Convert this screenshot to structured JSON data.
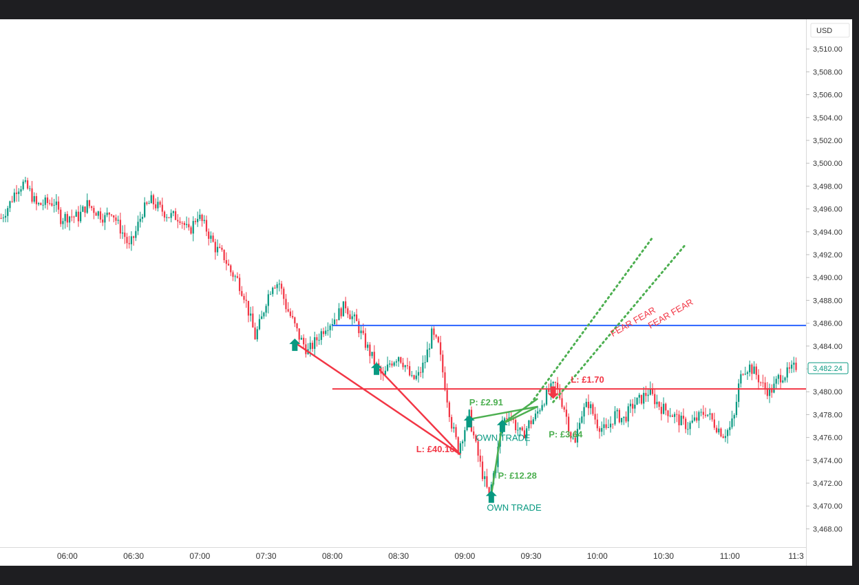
{
  "chart_data": {
    "type": "candlestick",
    "currency_label": "USD",
    "last_price_label": "3,482.24",
    "y_ticks": [
      3510,
      3508,
      3506,
      3504,
      3502,
      3500,
      3498,
      3496,
      3494,
      3492,
      3490,
      3488,
      3486,
      3484,
      3482,
      3480,
      3478,
      3476,
      3474,
      3472,
      3470,
      3468
    ],
    "y_tick_labels": [
      "3,510.00",
      "3,508.00",
      "3,506.00",
      "3,504.00",
      "3,502.00",
      "3,500.00",
      "3,498.00",
      "3,496.00",
      "3,494.00",
      "3,492.00",
      "3,490.00",
      "3,488.00",
      "3,486.00",
      "3,484.00",
      "3,482.00",
      "3,480.00",
      "3,478.00",
      "3,476.00",
      "3,474.00",
      "3,472.00",
      "3,470.00",
      "3,468.00"
    ],
    "ylim": [
      3466.4,
      3512.6
    ],
    "x_range_minutes": [
      329.5,
      694.5
    ],
    "x_ticks": [
      {
        "minute": 360,
        "label": "06:00"
      },
      {
        "minute": 390,
        "label": "06:30"
      },
      {
        "minute": 420,
        "label": "07:00"
      },
      {
        "minute": 450,
        "label": "07:30"
      },
      {
        "minute": 480,
        "label": "08:00"
      },
      {
        "minute": 510,
        "label": "08:30"
      },
      {
        "minute": 540,
        "label": "09:00"
      },
      {
        "minute": 570,
        "label": "09:30"
      },
      {
        "minute": 600,
        "label": "10:00"
      },
      {
        "minute": 630,
        "label": "10:30"
      },
      {
        "minute": 660,
        "label": "11:00"
      },
      {
        "minute": 690,
        "label": "11:3"
      }
    ],
    "path": [
      [
        330,
        3495.2
      ],
      [
        334,
        3496.5
      ],
      [
        337,
        3497.8
      ],
      [
        340,
        3498.2
      ],
      [
        343,
        3497.5
      ],
      [
        346,
        3496.3
      ],
      [
        350,
        3496.5
      ],
      [
        354,
        3496.6
      ],
      [
        357,
        3495.2
      ],
      [
        361,
        3495.4
      ],
      [
        365,
        3495.3
      ],
      [
        369,
        3496.4
      ],
      [
        373,
        3495.8
      ],
      [
        377,
        3495.2
      ],
      [
        380,
        3495.9
      ],
      [
        383,
        3494.6
      ],
      [
        386,
        3493.6
      ],
      [
        388,
        3492.6
      ],
      [
        391,
        3494.0
      ],
      [
        394,
        3495.8
      ],
      [
        398,
        3496.7
      ],
      [
        402,
        3496.0
      ],
      [
        406,
        3495.4
      ],
      [
        411,
        3495.3
      ],
      [
        415,
        3493.9
      ],
      [
        419,
        3495.5
      ],
      [
        423,
        3494.2
      ],
      [
        427,
        3492.6
      ],
      [
        431,
        3491.8
      ],
      [
        434,
        3490.5
      ],
      [
        437,
        3489.8
      ],
      [
        440,
        3488.5
      ],
      [
        443,
        3486.3
      ],
      [
        445,
        3484.8
      ],
      [
        448,
        3486.4
      ],
      [
        450,
        3488.0
      ],
      [
        453,
        3489.5
      ],
      [
        456,
        3489.5
      ],
      [
        459,
        3487.5
      ],
      [
        462,
        3486.2
      ],
      [
        465,
        3484.8
      ],
      [
        469,
        3483.5
      ],
      [
        473,
        3484.6
      ],
      [
        477,
        3485.8
      ],
      [
        480,
        3486.2
      ],
      [
        483,
        3486.9
      ],
      [
        486,
        3487.6
      ],
      [
        488,
        3486.8
      ],
      [
        491,
        3486.0
      ],
      [
        494,
        3484.6
      ],
      [
        497,
        3483.4
      ],
      [
        500,
        3482.2
      ],
      [
        503,
        3481.2
      ],
      [
        506,
        3482.5
      ],
      [
        510,
        3483.2
      ],
      [
        513,
        3482.3
      ],
      [
        516,
        3481.0
      ],
      [
        519,
        3481.4
      ],
      [
        522,
        3482.7
      ],
      [
        525,
        3485.0
      ],
      [
        528,
        3484.0
      ],
      [
        531,
        3480.6
      ],
      [
        534,
        3477.2
      ],
      [
        537,
        3475.0
      ],
      [
        540,
        3476.8
      ],
      [
        542,
        3477.9
      ],
      [
        545,
        3475.2
      ],
      [
        548,
        3472.8
      ],
      [
        551,
        3470.8
      ],
      [
        554,
        3473.8
      ],
      [
        557,
        3477.3
      ],
      [
        560,
        3478.2
      ],
      [
        563,
        3477.0
      ],
      [
        566,
        3476.1
      ],
      [
        569,
        3477.2
      ],
      [
        572,
        3477.8
      ],
      [
        575,
        3479.1
      ],
      [
        578,
        3480.0
      ],
      [
        581,
        3480.6
      ],
      [
        585,
        3478.6
      ],
      [
        588,
        3476.2
      ],
      [
        590,
        3475.4
      ],
      [
        592,
        3477.8
      ],
      [
        596,
        3479.0
      ],
      [
        600,
        3477.2
      ],
      [
        604,
        3476.5
      ],
      [
        608,
        3478.0
      ],
      [
        612,
        3477.6
      ],
      [
        616,
        3478.8
      ],
      [
        620,
        3479.4
      ],
      [
        623,
        3480.0
      ],
      [
        626,
        3479.3
      ],
      [
        629,
        3478.6
      ],
      [
        633,
        3478.2
      ],
      [
        637,
        3477.5
      ],
      [
        641,
        3477.0
      ],
      [
        645,
        3477.6
      ],
      [
        649,
        3478.3
      ],
      [
        653,
        3477.2
      ],
      [
        657,
        3476.3
      ],
      [
        660,
        3476.8
      ],
      [
        662,
        3477.8
      ],
      [
        664,
        3480.5
      ],
      [
        666,
        3482.0
      ],
      [
        669,
        3482.2
      ],
      [
        672,
        3481.5
      ],
      [
        675,
        3480.5
      ],
      [
        678,
        3480.0
      ],
      [
        680,
        3480.4
      ],
      [
        682,
        3481.2
      ],
      [
        684,
        3481.5
      ],
      [
        686,
        3481.6
      ],
      [
        688,
        3481.9
      ],
      [
        690,
        3482.24
      ]
    ],
    "horizontal_lines": [
      {
        "name": "resistance-line",
        "price": 3485.8,
        "from_minute": 480,
        "color": "#2962ff"
      },
      {
        "name": "support-line",
        "price": 3480.25,
        "from_minute": 480,
        "color": "#f23645"
      }
    ],
    "trade_lines": [
      {
        "name": "loss-line-1",
        "from": [
          463,
          3484.3
        ],
        "to": [
          538,
          3474.5
        ],
        "color": "#f23645"
      },
      {
        "name": "loss-line-2",
        "from": [
          500,
          3482.2
        ],
        "to": [
          538,
          3474.5
        ],
        "color": "#f23645"
      },
      {
        "name": "profit-line-1",
        "from": [
          542,
          3477.6
        ],
        "to": [
          573,
          3478.7
        ],
        "color": "#4caf50"
      },
      {
        "name": "profit-line-2",
        "from": [
          557,
          3477.2
        ],
        "to": [
          573,
          3478.7
        ],
        "color": "#4caf50"
      },
      {
        "name": "profit-line-3",
        "from": [
          552,
          3471.0
        ],
        "to": [
          557,
          3477.2
        ],
        "color": "#4caf50"
      },
      {
        "name": "profit-line-4",
        "from": [
          557,
          3477.2
        ],
        "to": [
          573,
          3479.4
        ],
        "color": "#4caf50"
      }
    ],
    "dotted_lines": [
      {
        "name": "fear-dotted-line-1",
        "from": [
          570,
          3479.0
        ],
        "to": [
          625,
          3493.5
        ],
        "color": "#4caf50"
      },
      {
        "name": "fear-dotted-line-2",
        "from": [
          580,
          3479.1
        ],
        "to": [
          640,
          3492.9
        ],
        "color": "#4caf50"
      }
    ],
    "markers": [
      {
        "name": "buy-arrow-1",
        "minute": 463,
        "price": 3484.3,
        "kind": "buy"
      },
      {
        "name": "buy-arrow-2",
        "minute": 500,
        "price": 3482.2,
        "kind": "buy"
      },
      {
        "name": "buy-arrow-3",
        "minute": 542,
        "price": 3477.6,
        "kind": "buy"
      },
      {
        "name": "buy-arrow-4",
        "minute": 552,
        "price": 3471.0,
        "kind": "buy"
      },
      {
        "name": "buy-arrow-5",
        "minute": 557,
        "price": 3477.2,
        "kind": "buy"
      },
      {
        "name": "sell-arrow-1",
        "minute": 580,
        "price": 3479.8,
        "kind": "sell"
      }
    ],
    "labels": [
      {
        "name": "loss-label-1",
        "text": "L: £40.16",
        "minute": 518,
        "price": 3474.7,
        "color": "#f23645",
        "bold": true
      },
      {
        "name": "loss-label-2",
        "text": "L: £1.70",
        "minute": 588,
        "price": 3480.8,
        "color": "#f23645",
        "bold": true
      },
      {
        "name": "profit-label-1",
        "text": "P: £2.91",
        "minute": 542,
        "price": 3478.8,
        "color": "#4caf50",
        "bold": true
      },
      {
        "name": "profit-label-2",
        "text": "P: £3.64",
        "minute": 578,
        "price": 3476.0,
        "color": "#4caf50",
        "bold": true
      },
      {
        "name": "profit-label-3",
        "text": "P: £12.28",
        "minute": 555,
        "price": 3472.4,
        "color": "#4caf50",
        "bold": true
      },
      {
        "name": "own-trade-label-1",
        "text": "OWN TRADE",
        "minute": 550,
        "price": 3469.6,
        "color": "#089981",
        "bold": false
      },
      {
        "name": "own-trade-label-2",
        "text": "OWN TRADE",
        "minute": 545,
        "price": 3475.7,
        "color": "#089981",
        "bold": false
      },
      {
        "name": "fear-label-1",
        "text": "FEAR FEAR",
        "minute": 607,
        "price": 3484.8,
        "color": "#f23645",
        "bold": false,
        "angle": -30
      },
      {
        "name": "fear-label-2",
        "text": "FEAR FEAR",
        "minute": 624,
        "price": 3485.5,
        "color": "#f23645",
        "bold": false,
        "angle": -30
      }
    ],
    "colors": {
      "up": "#089981",
      "down": "#f23645"
    }
  }
}
